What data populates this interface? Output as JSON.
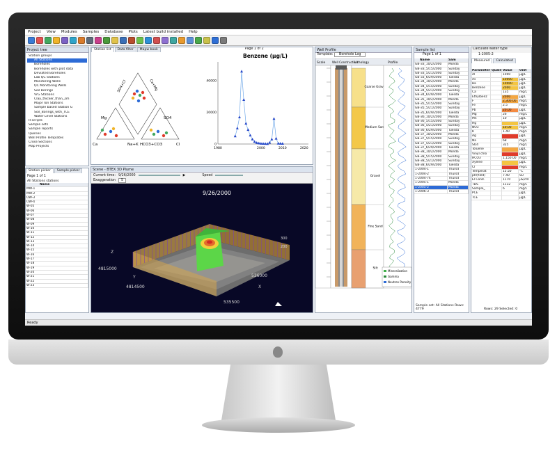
{
  "menu": {
    "items": [
      "Project",
      "View",
      "Modules",
      "Samples",
      "Database",
      "Plots",
      "Latest build installed",
      "Help"
    ]
  },
  "status": {
    "text": "Ready"
  },
  "left_top": {
    "title": "Project tree",
    "items": [
      "Station groups",
      "All Stations",
      "Boreholes",
      "Boreholes with plot data",
      "Deviated Boreholes",
      "Lab QC Stations",
      "Monitoring Wells",
      "QC Monitoring Wells",
      "Soil Borings",
      "VrG Stations",
      "Clay_thicker_than_2m",
      "Major Ion Stations",
      "Sample based Station G",
      "Soil_Borings_with_TCE",
      "Water Level Stations",
      "R-scripts",
      "Sample sets",
      "Sample reports",
      "Queries",
      "Well Profile Templates",
      "Cross-Sections",
      "Map Projects"
    ]
  },
  "left_bottom": {
    "tabs": [
      "Station picker",
      "Sample picker"
    ],
    "page": "Page 1 of 1",
    "group": "All Stations stations",
    "header": "Name",
    "rows": [
      "MW-1",
      "MW-2",
      "OW-3",
      "OW-4",
      "W-05",
      "W-06",
      "W-07",
      "W-08",
      "W-09",
      "W-10",
      "W-11",
      "W-12",
      "W-13",
      "W-14",
      "W-15",
      "W-16",
      "W-17",
      "W-18",
      "W-19",
      "W-20",
      "W-21",
      "W-22",
      "W-23"
    ]
  },
  "center_top": {
    "tabs": [
      "Station list",
      "Data filter",
      "Mapw book"
    ],
    "page": "Page 1 of 2",
    "piper_labels": {
      "so4cl": "SO4+Cl",
      "camg": "Ca+Mg",
      "mg": "Mg",
      "so4": "SO4",
      "ca": "Ca",
      "nak": "Na+K",
      "hco3": "HCO3+CO3",
      "cl": "Cl"
    }
  },
  "chart_data": {
    "type": "scatter",
    "title": "Benzene (µg/L)",
    "xlabel": "",
    "ylabel": "",
    "xticks": [
      "1980",
      "2000",
      "2010",
      "2020"
    ],
    "yticks": [
      "0",
      "20000",
      "40000"
    ],
    "xlim": [
      1980,
      2022
    ],
    "ylim": [
      0,
      52000
    ],
    "x": [
      1988,
      1989,
      1990,
      1991,
      1992,
      1993,
      1994,
      1995,
      1996,
      1997,
      1998,
      1999,
      2000,
      2001,
      2002,
      2003,
      2004,
      2005,
      2006,
      2007,
      2008,
      2009,
      2010
    ],
    "values": [
      5000,
      10000,
      17000,
      46000,
      28000,
      13000,
      9000,
      5500,
      3000,
      1500,
      800,
      500,
      300,
      250,
      200,
      150,
      900,
      3000,
      16000,
      3500,
      400,
      300,
      250
    ]
  },
  "scene": {
    "title": "Scene - BTEX 3D Plume",
    "time_label": "Current time:",
    "time_value": "9/26/2000",
    "speed_label": "Speed",
    "exaggeration_label": "Exaggeration",
    "exaggeration_value": "5",
    "date_overlay": "9/26/2000",
    "axis_labels": [
      "4815000",
      "536000",
      "4814500",
      "535500"
    ],
    "axis_letters": [
      "Z",
      "Y",
      "X"
    ],
    "z_ticks": [
      "300",
      "200"
    ]
  },
  "well": {
    "title": "Well Profile",
    "template_label": "Template:",
    "template_value": "Borehole Log",
    "columns": [
      "Scale",
      "Well Construction",
      "Lithology",
      "Profile"
    ],
    "lith": [
      "Coarse Gravel",
      "Medium Sand",
      "Gravel",
      "Fine Sand",
      "Silt"
    ],
    "legend": [
      "Mineralization",
      "Gamma",
      "Neutron Porosity"
    ]
  },
  "samples": {
    "title": "Sample list",
    "page": "Page 1 of 1",
    "headers": [
      "Name",
      "Sam"
    ],
    "rows": [
      [
        "GB-33_10/2/2000",
        "Monda"
      ],
      [
        "GB-33_5/15/2000",
        "Sunday"
      ],
      [
        "GB-33_5/21/2000",
        "Sunday"
      ],
      [
        "GB-33_6/29/2000",
        "Tuesda"
      ],
      [
        "GB-34_10/2/2000",
        "Monda"
      ],
      [
        "GB-34_5/15/2000",
        "Sunday"
      ],
      [
        "GB-34_5/21/2000",
        "Sunday"
      ],
      [
        "GB-34_6/29/2000",
        "Tuesda"
      ],
      [
        "GB-35_10/2/2000",
        "Monda"
      ],
      [
        "GB-35_5/15/2000",
        "Sunday"
      ],
      [
        "GB-35_5/21/2000",
        "Sunday"
      ],
      [
        "GB-35_6/29/2000",
        "Tuesda"
      ],
      [
        "GB-36_10/2/2000",
        "Monda"
      ],
      [
        "GB-36_5/15/2000",
        "Sunday"
      ],
      [
        "GB-36_5/21/2000",
        "Sunday"
      ],
      [
        "GB-36_6/29/2000",
        "Tuesda"
      ],
      [
        "GB-37_10/2/2000",
        "Monda"
      ],
      [
        "GB-37_5/15/2000",
        "Sunday"
      ],
      [
        "GB-37_5/21/2000",
        "Sunday"
      ],
      [
        "GB-37_6/29/2000",
        "Tuesda"
      ],
      [
        "GB-38_10/2/2000",
        "Monda"
      ],
      [
        "GB-38_5/15/2000",
        "Sunday"
      ],
      [
        "GB-38_5/21/2000",
        "Sunday"
      ],
      [
        "GB-38_6/29/2000",
        "Tuesda"
      ],
      [
        "1-2004-1",
        "Thursd"
      ],
      [
        "1-2004-2",
        "Thursd"
      ],
      [
        "1-2004-74",
        "Thursd"
      ],
      [
        "1-2005-1",
        "Monda"
      ],
      [
        "1-2005-2",
        "Monda"
      ],
      [
        "1-2006-3",
        "Thursd"
      ]
    ],
    "selected_index": 28,
    "footer_set": "Sample set: All Stations",
    "footer_rows": "Rows: 4779"
  },
  "params": {
    "toolbar_text": "Calculate water type",
    "sample_name": "1-2005-2",
    "tabs": [
      "Measured",
      "Calculated"
    ],
    "headers": [
      "Parameter",
      "Qualifier",
      "Value",
      "Unit"
    ],
    "rows": [
      [
        "Al",
        "",
        "1000",
        "µg/L",
        ""
      ],
      [
        "As",
        "",
        "10000",
        "µg/L",
        "#f4c542"
      ],
      [
        "Ba",
        "",
        "10000",
        "µg/L",
        "#f4c542"
      ],
      [
        "Benzene",
        "",
        "2000",
        "µg/L",
        "#f4c542"
      ],
      [
        "Ca",
        "",
        "135",
        "mg/L",
        ""
      ],
      [
        "Ethylbenz",
        "",
        "2000",
        "µg/L",
        "#f4a742"
      ],
      [
        "F",
        "",
        "2,300.00",
        "mg/L",
        "#f4a742"
      ],
      [
        "Fe",
        "",
        "2.5",
        "mg/L",
        ""
      ],
      [
        "Pb",
        "",
        "20.00",
        "µg/L",
        "#f48a42"
      ],
      [
        "Mg",
        "",
        "26",
        "mg/L",
        ""
      ],
      [
        "Mn",
        "",
        "10",
        "µg/L",
        ""
      ],
      [
        "Hg",
        "",
        "",
        "µg/L",
        "#f4c542"
      ],
      [
        "NO3",
        "",
        "10.00",
        "mg/L",
        "#f4c542"
      ],
      [
        "K",
        "",
        "1.40",
        "mg/L",
        ""
      ],
      [
        "Ag",
        "",
        "",
        "µg/L",
        "#e03b2a"
      ],
      [
        "Na",
        "",
        "68",
        "mg/L",
        ""
      ],
      [
        "SO4",
        "",
        "325",
        "mg/L",
        ""
      ],
      [
        "Toluene",
        "",
        "",
        "µg/L",
        "#f4a742"
      ],
      [
        "Vinyl chlo",
        "",
        "",
        "µg/L",
        "#e03b2a"
      ],
      [
        "HCO3",
        "",
        "1,150.00",
        "mg/L",
        ""
      ],
      [
        "Xylene",
        "",
        "",
        "µg/L",
        "#f4c542"
      ],
      [
        "Cl",
        "",
        "",
        "mg/L",
        "#e03b2a"
      ],
      [
        "Temperat",
        "",
        "15.50",
        "°C",
        ""
      ],
      [
        "pH(field)",
        "",
        "7.40",
        "SU",
        ""
      ],
      [
        "El Cond.",
        "",
        "1170",
        "µS/cm",
        ""
      ],
      [
        "TDS",
        "",
        "1132",
        "mg/L",
        ""
      ],
      [
        "Sample_",
        "",
        "6",
        "mg/L",
        ""
      ],
      [
        "PCE",
        "",
        "",
        "µg/L",
        ""
      ],
      [
        "TCE",
        "",
        "",
        "µg/L",
        ""
      ]
    ],
    "footer_rows": "Rows: 29",
    "footer_selected": "Selected: 0"
  }
}
